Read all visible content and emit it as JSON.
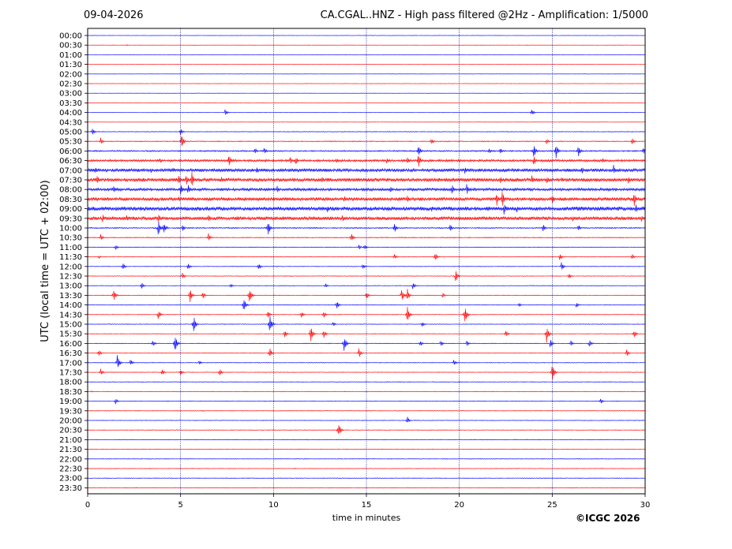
{
  "header": {
    "date": "09-04-2026",
    "title": "CA.CGAL..HNZ - High pass filtered @2Hz - Amplification: 1/5000"
  },
  "footer": {
    "copyright": "©ICGC 2026"
  },
  "colors": {
    "odd_trace": "#ff0000",
    "even_trace": "#0000ff",
    "grid": "#000080",
    "frame": "#000000"
  },
  "chart_data": {
    "type": "heatmap",
    "xlabel": "time in minutes",
    "ylabel": "UTC (local time = UTC + 02:00)",
    "xlim": [
      0,
      30
    ],
    "x_ticks": [
      "0",
      "5",
      "10",
      "15",
      "20",
      "25",
      "30"
    ],
    "x_tick_values": [
      0,
      5,
      10,
      15,
      20,
      25,
      30
    ],
    "grid_x": [
      5,
      10,
      15,
      20,
      25
    ],
    "y_ticks": [
      "00:00",
      "00:30",
      "01:00",
      "01:30",
      "02:00",
      "02:30",
      "03:00",
      "03:30",
      "04:00",
      "04:30",
      "05:00",
      "05:30",
      "06:00",
      "06:30",
      "07:00",
      "07:30",
      "08:00",
      "08:30",
      "09:00",
      "09:30",
      "10:00",
      "10:30",
      "11:00",
      "11:30",
      "12:00",
      "12:30",
      "13:00",
      "13:30",
      "14:00",
      "14:30",
      "15:00",
      "15:30",
      "16:00",
      "16:30",
      "17:00",
      "17:30",
      "18:00",
      "18:30",
      "19:00",
      "19:30",
      "20:00",
      "20:30",
      "21:00",
      "21:30",
      "22:00",
      "22:30",
      "23:00",
      "23:30"
    ],
    "trace_noise": [
      0.2,
      0.2,
      0.2,
      0.2,
      0.2,
      0.2,
      0.2,
      0.2,
      0.2,
      0.2,
      0.3,
      0.4,
      0.6,
      1.0,
      1.4,
      1.6,
      1.2,
      1.6,
      1.8,
      1.6,
      0.5,
      0.4,
      0.3,
      0.3,
      0.3,
      0.3,
      0.3,
      0.3,
      0.3,
      0.3,
      0.3,
      0.3,
      0.3,
      0.3,
      0.3,
      0.3,
      0.3,
      0.3,
      0.3,
      0.3,
      0.3,
      0.3,
      0.3,
      0.3,
      0.3,
      0.3,
      0.3,
      0.3
    ],
    "events": [
      {
        "row": 1,
        "t": 2.1,
        "a": 0.8
      },
      {
        "row": 8,
        "t": 7.4,
        "a": 5
      },
      {
        "row": 8,
        "t": 23.9,
        "a": 5
      },
      {
        "row": 10,
        "t": 0.25,
        "a": 5
      },
      {
        "row": 10,
        "t": 5.0,
        "a": 5
      },
      {
        "row": 11,
        "t": 0.7,
        "a": 5
      },
      {
        "row": 11,
        "t": 5.05,
        "a": 11
      },
      {
        "row": 11,
        "t": 18.5,
        "a": 5
      },
      {
        "row": 11,
        "t": 24.7,
        "a": 4
      },
      {
        "row": 11,
        "t": 29.3,
        "a": 5
      },
      {
        "row": 12,
        "t": 9.0,
        "a": 5
      },
      {
        "row": 12,
        "t": 9.5,
        "a": 5
      },
      {
        "row": 12,
        "t": 17.8,
        "a": 9
      },
      {
        "row": 12,
        "t": 21.6,
        "a": 4
      },
      {
        "row": 12,
        "t": 22.2,
        "a": 5
      },
      {
        "row": 12,
        "t": 24.0,
        "a": 11
      },
      {
        "row": 12,
        "t": 25.2,
        "a": 11
      },
      {
        "row": 12,
        "t": 26.4,
        "a": 9
      },
      {
        "row": 12,
        "t": 29.9,
        "a": 6
      },
      {
        "row": 13,
        "t": 3.9,
        "a": 4
      },
      {
        "row": 13,
        "t": 7.6,
        "a": 10
      },
      {
        "row": 13,
        "t": 10.9,
        "a": 5
      },
      {
        "row": 13,
        "t": 11.2,
        "a": 6
      },
      {
        "row": 13,
        "t": 13.4,
        "a": 4
      },
      {
        "row": 13,
        "t": 16.1,
        "a": 4
      },
      {
        "row": 13,
        "t": 17.2,
        "a": 6
      },
      {
        "row": 13,
        "t": 17.8,
        "a": 10
      },
      {
        "row": 13,
        "t": 24.0,
        "a": 8
      },
      {
        "row": 13,
        "t": 27.7,
        "a": 4
      },
      {
        "row": 14,
        "t": 0.4,
        "a": 5
      },
      {
        "row": 14,
        "t": 2.7,
        "a": 4
      },
      {
        "row": 14,
        "t": 3.4,
        "a": 4
      },
      {
        "row": 14,
        "t": 4.6,
        "a": 4
      },
      {
        "row": 14,
        "t": 9.1,
        "a": 5
      },
      {
        "row": 14,
        "t": 20.3,
        "a": 5
      },
      {
        "row": 14,
        "t": 26.6,
        "a": 5
      },
      {
        "row": 14,
        "t": 28.3,
        "a": 7
      },
      {
        "row": 15,
        "t": 0.5,
        "a": 7
      },
      {
        "row": 15,
        "t": 4.9,
        "a": 9
      },
      {
        "row": 15,
        "t": 5.3,
        "a": 8
      },
      {
        "row": 15,
        "t": 5.6,
        "a": 11
      },
      {
        "row": 15,
        "t": 7.2,
        "a": 4
      },
      {
        "row": 15,
        "t": 12.6,
        "a": 5
      },
      {
        "row": 15,
        "t": 22.2,
        "a": 6
      },
      {
        "row": 15,
        "t": 23.9,
        "a": 7
      },
      {
        "row": 15,
        "t": 24.7,
        "a": 6
      },
      {
        "row": 15,
        "t": 25.5,
        "a": 4
      },
      {
        "row": 15,
        "t": 29.1,
        "a": 5
      },
      {
        "row": 16,
        "t": 1.4,
        "a": 6
      },
      {
        "row": 16,
        "t": 5.0,
        "a": 8
      },
      {
        "row": 16,
        "t": 5.4,
        "a": 7
      },
      {
        "row": 16,
        "t": 10.2,
        "a": 5
      },
      {
        "row": 16,
        "t": 16.3,
        "a": 6
      },
      {
        "row": 16,
        "t": 19.6,
        "a": 7
      },
      {
        "row": 16,
        "t": 20.4,
        "a": 8
      },
      {
        "row": 17,
        "t": 4.9,
        "a": 4
      },
      {
        "row": 17,
        "t": 13.8,
        "a": 5
      },
      {
        "row": 17,
        "t": 17.2,
        "a": 6
      },
      {
        "row": 17,
        "t": 22.0,
        "a": 11
      },
      {
        "row": 17,
        "t": 22.3,
        "a": 14
      },
      {
        "row": 17,
        "t": 25.0,
        "a": 8
      },
      {
        "row": 17,
        "t": 29.4,
        "a": 11
      },
      {
        "row": 18,
        "t": 12.9,
        "a": 6
      },
      {
        "row": 18,
        "t": 18.5,
        "a": 4
      },
      {
        "row": 18,
        "t": 22.4,
        "a": 9
      },
      {
        "row": 18,
        "t": 23.1,
        "a": 5
      },
      {
        "row": 18,
        "t": 29.5,
        "a": 6
      },
      {
        "row": 19,
        "t": 0.8,
        "a": 6
      },
      {
        "row": 19,
        "t": 2.1,
        "a": 6
      },
      {
        "row": 19,
        "t": 3.8,
        "a": 7
      },
      {
        "row": 19,
        "t": 6.5,
        "a": 5
      },
      {
        "row": 19,
        "t": 13.7,
        "a": 5
      },
      {
        "row": 19,
        "t": 26.1,
        "a": 5
      },
      {
        "row": 19,
        "t": 29.8,
        "a": 5
      },
      {
        "row": 20,
        "t": 3.8,
        "a": 11
      },
      {
        "row": 20,
        "t": 4.1,
        "a": 10
      },
      {
        "row": 20,
        "t": 5.1,
        "a": 5
      },
      {
        "row": 20,
        "t": 9.7,
        "a": 11
      },
      {
        "row": 20,
        "t": 16.5,
        "a": 7
      },
      {
        "row": 20,
        "t": 19.5,
        "a": 5
      },
      {
        "row": 20,
        "t": 24.5,
        "a": 6
      },
      {
        "row": 20,
        "t": 26.4,
        "a": 5
      },
      {
        "row": 21,
        "t": 0.7,
        "a": 5
      },
      {
        "row": 21,
        "t": 6.5,
        "a": 6
      },
      {
        "row": 21,
        "t": 14.2,
        "a": 6
      },
      {
        "row": 22,
        "t": 1.5,
        "a": 4
      },
      {
        "row": 22,
        "t": 14.6,
        "a": 4
      },
      {
        "row": 22,
        "t": 14.9,
        "a": 4
      },
      {
        "row": 23,
        "t": 0.6,
        "a": 2
      },
      {
        "row": 23,
        "t": 16.5,
        "a": 4
      },
      {
        "row": 23,
        "t": 18.7,
        "a": 6
      },
      {
        "row": 23,
        "t": 25.4,
        "a": 5
      },
      {
        "row": 23,
        "t": 29.3,
        "a": 4
      },
      {
        "row": 24,
        "t": 1.9,
        "a": 5
      },
      {
        "row": 24,
        "t": 5.4,
        "a": 5
      },
      {
        "row": 24,
        "t": 9.2,
        "a": 5
      },
      {
        "row": 24,
        "t": 14.8,
        "a": 4
      },
      {
        "row": 24,
        "t": 25.5,
        "a": 6
      },
      {
        "row": 25,
        "t": 5.1,
        "a": 5
      },
      {
        "row": 25,
        "t": 19.8,
        "a": 9
      },
      {
        "row": 25,
        "t": 25.9,
        "a": 4
      },
      {
        "row": 26,
        "t": 2.9,
        "a": 5
      },
      {
        "row": 26,
        "t": 7.7,
        "a": 3
      },
      {
        "row": 26,
        "t": 12.8,
        "a": 3
      },
      {
        "row": 26,
        "t": 17.5,
        "a": 5
      },
      {
        "row": 27,
        "t": 1.4,
        "a": 9
      },
      {
        "row": 27,
        "t": 5.5,
        "a": 10
      },
      {
        "row": 27,
        "t": 6.2,
        "a": 5
      },
      {
        "row": 27,
        "t": 8.7,
        "a": 12
      },
      {
        "row": 27,
        "t": 15.0,
        "a": 6
      },
      {
        "row": 27,
        "t": 16.9,
        "a": 10
      },
      {
        "row": 27,
        "t": 17.2,
        "a": 9
      },
      {
        "row": 27,
        "t": 19.1,
        "a": 4
      },
      {
        "row": 28,
        "t": 8.4,
        "a": 11
      },
      {
        "row": 28,
        "t": 13.4,
        "a": 6
      },
      {
        "row": 28,
        "t": 23.2,
        "a": 3
      },
      {
        "row": 28,
        "t": 26.3,
        "a": 4
      },
      {
        "row": 29,
        "t": 3.8,
        "a": 7
      },
      {
        "row": 29,
        "t": 9.7,
        "a": 6
      },
      {
        "row": 29,
        "t": 11.5,
        "a": 5
      },
      {
        "row": 29,
        "t": 12.7,
        "a": 5
      },
      {
        "row": 29,
        "t": 17.2,
        "a": 12
      },
      {
        "row": 29,
        "t": 20.3,
        "a": 13
      },
      {
        "row": 30,
        "t": 5.7,
        "a": 12
      },
      {
        "row": 30,
        "t": 9.8,
        "a": 13
      },
      {
        "row": 30,
        "t": 13.2,
        "a": 4
      },
      {
        "row": 30,
        "t": 18.0,
        "a": 4
      },
      {
        "row": 31,
        "t": 10.6,
        "a": 6
      },
      {
        "row": 31,
        "t": 12.0,
        "a": 11
      },
      {
        "row": 31,
        "t": 12.7,
        "a": 6
      },
      {
        "row": 31,
        "t": 22.5,
        "a": 5
      },
      {
        "row": 31,
        "t": 24.7,
        "a": 12
      },
      {
        "row": 31,
        "t": 29.4,
        "a": 6
      },
      {
        "row": 32,
        "t": 3.5,
        "a": 5
      },
      {
        "row": 32,
        "t": 4.7,
        "a": 12
      },
      {
        "row": 32,
        "t": 13.8,
        "a": 12
      },
      {
        "row": 32,
        "t": 17.9,
        "a": 4
      },
      {
        "row": 32,
        "t": 19.0,
        "a": 4
      },
      {
        "row": 32,
        "t": 20.4,
        "a": 4
      },
      {
        "row": 32,
        "t": 24.9,
        "a": 6
      },
      {
        "row": 32,
        "t": 26.0,
        "a": 4
      },
      {
        "row": 32,
        "t": 27.0,
        "a": 6
      },
      {
        "row": 33,
        "t": 0.6,
        "a": 5
      },
      {
        "row": 33,
        "t": 9.8,
        "a": 7
      },
      {
        "row": 33,
        "t": 14.6,
        "a": 7
      },
      {
        "row": 33,
        "t": 29.0,
        "a": 5
      },
      {
        "row": 34,
        "t": 1.6,
        "a": 12
      },
      {
        "row": 34,
        "t": 2.3,
        "a": 5
      },
      {
        "row": 34,
        "t": 6.0,
        "a": 3
      },
      {
        "row": 34,
        "t": 19.7,
        "a": 5
      },
      {
        "row": 35,
        "t": 0.7,
        "a": 5
      },
      {
        "row": 35,
        "t": 4.0,
        "a": 5
      },
      {
        "row": 35,
        "t": 5.0,
        "a": 4
      },
      {
        "row": 35,
        "t": 7.1,
        "a": 5
      },
      {
        "row": 35,
        "t": 25.0,
        "a": 12
      },
      {
        "row": 37,
        "t": 0.2,
        "a": 1
      },
      {
        "row": 38,
        "t": 1.5,
        "a": 4
      },
      {
        "row": 38,
        "t": 4.3,
        "a": 1
      },
      {
        "row": 38,
        "t": 27.6,
        "a": 4
      },
      {
        "row": 39,
        "t": 6.2,
        "a": 0.8
      },
      {
        "row": 40,
        "t": 17.2,
        "a": 5
      },
      {
        "row": 41,
        "t": 13.5,
        "a": 11
      },
      {
        "row": 42,
        "t": 11.8,
        "a": 1
      }
    ]
  }
}
